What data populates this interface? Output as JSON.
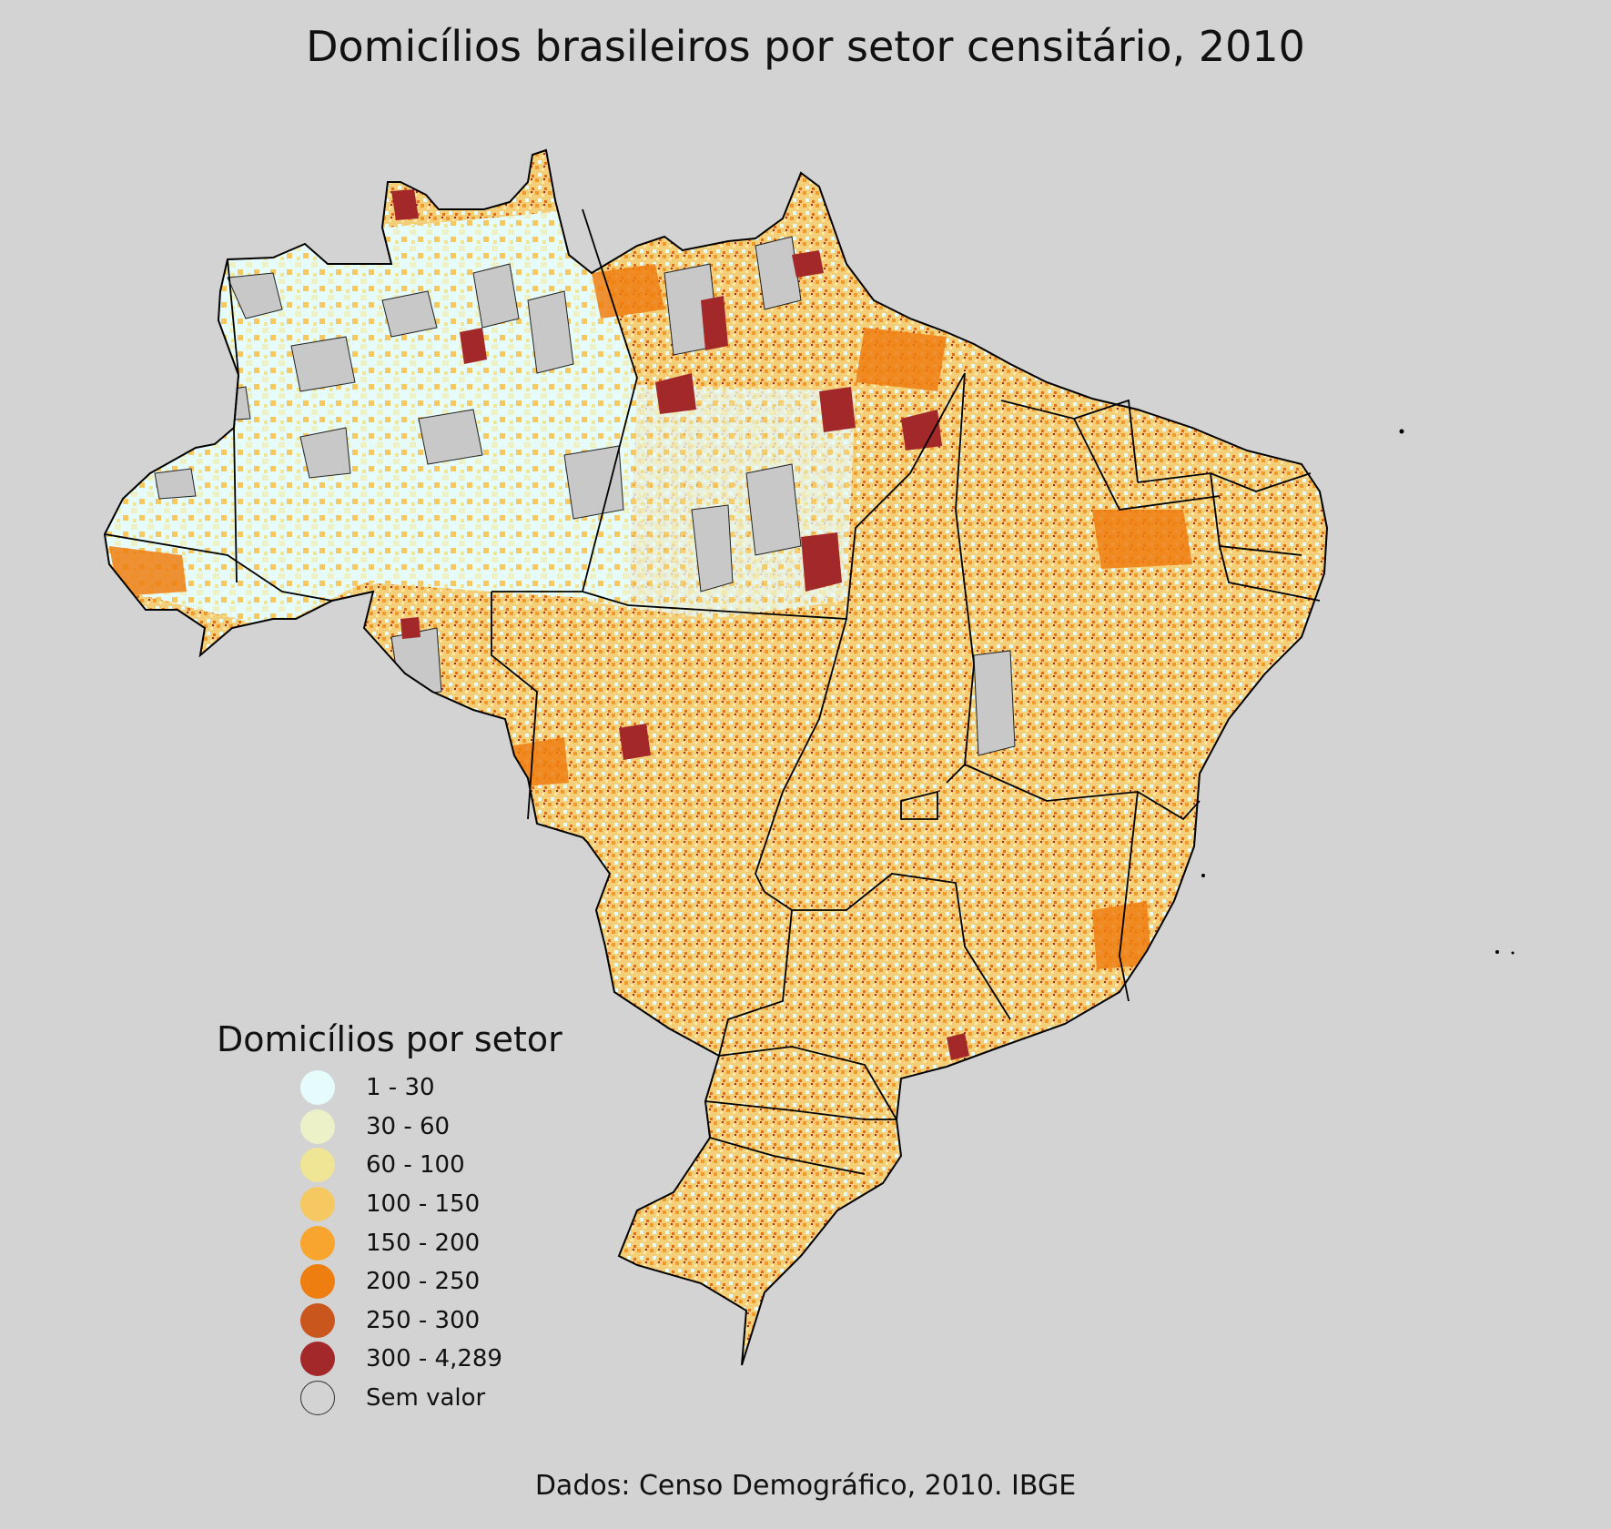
{
  "title": "Domicílios brasileiros por setor censitário, 2010",
  "source": "Dados: Censo Demográfico, 2010. IBGE",
  "legend": {
    "title": "Domicílios por setor",
    "items": [
      {
        "label": "1 - 30",
        "color": "#e6fcfc"
      },
      {
        "label": "30 - 60",
        "color": "#edf1c8"
      },
      {
        "label": "60 - 100",
        "color": "#efe594"
      },
      {
        "label": "100 - 150",
        "color": "#f5c862"
      },
      {
        "label": "150 - 200",
        "color": "#f7a52e"
      },
      {
        "label": "200 - 250",
        "color": "#ef7e10"
      },
      {
        "label": "250 - 300",
        "color": "#c9561d"
      },
      {
        "label": "300 - 4,289",
        "color": "#a2282a"
      },
      {
        "label": "Sem valor",
        "color": "#d3d3d3"
      }
    ]
  },
  "map": {
    "background": "#d3d3d3",
    "border_color": "#000000",
    "no_data_color": "#c8c8c8"
  }
}
